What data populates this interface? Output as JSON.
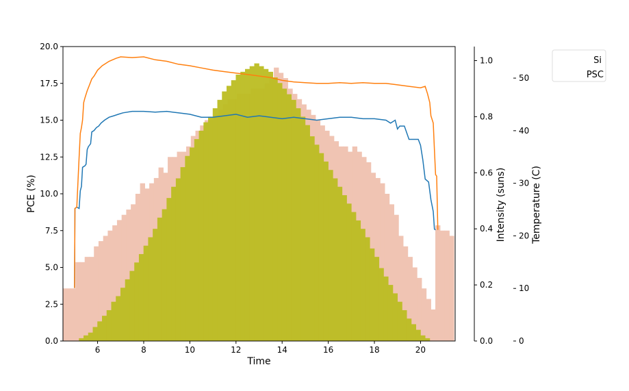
{
  "chart_data": {
    "type": "line",
    "title": "",
    "xlabel": "Time",
    "xlim": [
      4.5,
      21.5
    ],
    "x_ticks": [
      6,
      8,
      10,
      12,
      14,
      16,
      18,
      20
    ],
    "axes": {
      "pce": {
        "label": "PCE (%)",
        "lim": [
          0,
          20
        ],
        "ticks": [
          "0.0",
          "2.5",
          "5.0",
          "7.5",
          "10.0",
          "12.5",
          "15.0",
          "17.5",
          "20.0"
        ]
      },
      "intensity": {
        "label": "Intensity (suns)",
        "lim": [
          0,
          1.05
        ],
        "ticks": [
          "0.0",
          "0.2",
          "0.4",
          "0.6",
          "0.8",
          "1.0"
        ]
      },
      "temperature": {
        "label": "Temperature (C)",
        "lim": [
          0,
          56
        ],
        "ticks": [
          "0",
          "10",
          "20",
          "30",
          "40",
          "50"
        ]
      }
    },
    "legend": {
      "placement": "outside-top-right",
      "entries": [
        "Si",
        "PSC"
      ]
    },
    "grid": false,
    "series": [
      {
        "name": "Si",
        "axis": "pce",
        "color": "#1f77b4",
        "points": [
          [
            5.0,
            3.6
          ],
          [
            5.02,
            9.0
          ],
          [
            5.1,
            9.1
          ],
          [
            5.2,
            9.0
          ],
          [
            5.25,
            10.2
          ],
          [
            5.3,
            10.5
          ],
          [
            5.35,
            11.8
          ],
          [
            5.45,
            11.9
          ],
          [
            5.5,
            12.0
          ],
          [
            5.55,
            13.0
          ],
          [
            5.6,
            13.2
          ],
          [
            5.7,
            13.4
          ],
          [
            5.75,
            14.2
          ],
          [
            5.85,
            14.3
          ],
          [
            5.95,
            14.5
          ],
          [
            6.05,
            14.6
          ],
          [
            6.15,
            14.8
          ],
          [
            6.3,
            15.0
          ],
          [
            6.5,
            15.2
          ],
          [
            6.7,
            15.3
          ],
          [
            6.9,
            15.4
          ],
          [
            7.1,
            15.5
          ],
          [
            7.5,
            15.6
          ],
          [
            8.0,
            15.6
          ],
          [
            8.5,
            15.55
          ],
          [
            9.0,
            15.6
          ],
          [
            9.5,
            15.5
          ],
          [
            10.0,
            15.4
          ],
          [
            10.5,
            15.2
          ],
          [
            11.0,
            15.2
          ],
          [
            11.5,
            15.3
          ],
          [
            12.0,
            15.4
          ],
          [
            12.5,
            15.2
          ],
          [
            13.0,
            15.3
          ],
          [
            13.5,
            15.2
          ],
          [
            14.0,
            15.1
          ],
          [
            14.5,
            15.2
          ],
          [
            15.0,
            15.1
          ],
          [
            15.5,
            15.0
          ],
          [
            16.0,
            15.1
          ],
          [
            16.5,
            15.2
          ],
          [
            17.0,
            15.2
          ],
          [
            17.5,
            15.1
          ],
          [
            18.0,
            15.1
          ],
          [
            18.5,
            15.0
          ],
          [
            18.7,
            14.8
          ],
          [
            18.9,
            15.0
          ],
          [
            19.0,
            14.4
          ],
          [
            19.1,
            14.6
          ],
          [
            19.3,
            14.6
          ],
          [
            19.5,
            13.7
          ],
          [
            19.9,
            13.7
          ],
          [
            20.0,
            13.3
          ],
          [
            20.1,
            12.3
          ],
          [
            20.2,
            11.0
          ],
          [
            20.35,
            10.8
          ],
          [
            20.45,
            9.6
          ],
          [
            20.55,
            8.8
          ],
          [
            20.6,
            7.6
          ],
          [
            20.65,
            7.55
          ]
        ]
      },
      {
        "name": "PSC",
        "axis": "pce",
        "color": "#ff7f0e",
        "points": [
          [
            5.0,
            3.6
          ],
          [
            5.02,
            9.0
          ],
          [
            5.1,
            9.1
          ],
          [
            5.2,
            12.5
          ],
          [
            5.25,
            14.1
          ],
          [
            5.3,
            14.5
          ],
          [
            5.35,
            15.0
          ],
          [
            5.4,
            16.2
          ],
          [
            5.45,
            16.5
          ],
          [
            5.55,
            17.0
          ],
          [
            5.65,
            17.4
          ],
          [
            5.75,
            17.8
          ],
          [
            5.85,
            18.0
          ],
          [
            6.0,
            18.4
          ],
          [
            6.2,
            18.7
          ],
          [
            6.5,
            19.0
          ],
          [
            6.8,
            19.2
          ],
          [
            7.0,
            19.3
          ],
          [
            7.5,
            19.25
          ],
          [
            8.0,
            19.3
          ],
          [
            8.5,
            19.1
          ],
          [
            9.0,
            19.0
          ],
          [
            9.5,
            18.8
          ],
          [
            10.0,
            18.7
          ],
          [
            10.5,
            18.55
          ],
          [
            11.0,
            18.4
          ],
          [
            11.5,
            18.3
          ],
          [
            12.0,
            18.2
          ],
          [
            12.5,
            18.1
          ],
          [
            13.0,
            18.0
          ],
          [
            13.5,
            17.9
          ],
          [
            14.0,
            17.7
          ],
          [
            14.5,
            17.6
          ],
          [
            15.0,
            17.55
          ],
          [
            15.5,
            17.5
          ],
          [
            16.0,
            17.5
          ],
          [
            16.5,
            17.55
          ],
          [
            17.0,
            17.5
          ],
          [
            17.5,
            17.55
          ],
          [
            18.0,
            17.5
          ],
          [
            18.5,
            17.5
          ],
          [
            19.0,
            17.4
          ],
          [
            19.5,
            17.3
          ],
          [
            20.0,
            17.2
          ],
          [
            20.2,
            17.3
          ],
          [
            20.3,
            16.8
          ],
          [
            20.4,
            16.2
          ],
          [
            20.45,
            15.3
          ],
          [
            20.55,
            14.8
          ],
          [
            20.6,
            13.0
          ],
          [
            20.65,
            11.3
          ],
          [
            20.7,
            11.2
          ],
          [
            20.75,
            7.55
          ]
        ]
      },
      {
        "name": "Intensity",
        "axis": "intensity",
        "type": "bar",
        "color": "#bcbd22",
        "x": [
          5.3,
          5.5,
          5.7,
          5.9,
          6.1,
          6.3,
          6.5,
          6.7,
          6.9,
          7.1,
          7.3,
          7.5,
          7.7,
          7.9,
          8.1,
          8.3,
          8.5,
          8.7,
          8.9,
          9.1,
          9.3,
          9.5,
          9.7,
          9.9,
          10.1,
          10.3,
          10.5,
          10.7,
          10.9,
          11.1,
          11.3,
          11.5,
          11.7,
          11.9,
          12.1,
          12.3,
          12.5,
          12.7,
          12.9,
          13.1,
          13.3,
          13.5,
          13.7,
          13.9,
          14.1,
          14.3,
          14.5,
          14.7,
          14.9,
          15.1,
          15.3,
          15.5,
          15.7,
          15.9,
          16.1,
          16.3,
          16.5,
          16.7,
          16.9,
          17.1,
          17.3,
          17.5,
          17.7,
          17.9,
          18.1,
          18.3,
          18.5,
          18.7,
          18.9,
          19.1,
          19.3,
          19.5,
          19.7,
          19.9,
          20.1,
          20.3,
          20.5
        ],
        "values": [
          0.01,
          0.02,
          0.03,
          0.05,
          0.07,
          0.09,
          0.11,
          0.14,
          0.16,
          0.19,
          0.22,
          0.25,
          0.28,
          0.31,
          0.34,
          0.37,
          0.4,
          0.44,
          0.47,
          0.51,
          0.55,
          0.58,
          0.62,
          0.66,
          0.69,
          0.72,
          0.75,
          0.78,
          0.8,
          0.83,
          0.86,
          0.89,
          0.91,
          0.93,
          0.95,
          0.96,
          0.97,
          0.98,
          0.99,
          0.98,
          0.97,
          0.96,
          0.94,
          0.92,
          0.9,
          0.88,
          0.86,
          0.83,
          0.8,
          0.77,
          0.73,
          0.7,
          0.67,
          0.64,
          0.61,
          0.58,
          0.55,
          0.52,
          0.49,
          0.46,
          0.43,
          0.4,
          0.37,
          0.33,
          0.3,
          0.26,
          0.23,
          0.2,
          0.17,
          0.14,
          0.11,
          0.08,
          0.06,
          0.04,
          0.02,
          0.01,
          0.0
        ]
      },
      {
        "name": "Temperature",
        "axis": "temperature",
        "type": "bar",
        "color": "#f0c4b3",
        "x": [
          4.55,
          4.75,
          4.95,
          5.15,
          5.35,
          5.55,
          5.75,
          5.95,
          6.15,
          6.35,
          6.55,
          6.75,
          6.95,
          7.15,
          7.35,
          7.55,
          7.75,
          7.95,
          8.15,
          8.35,
          8.55,
          8.75,
          8.95,
          9.15,
          9.35,
          9.55,
          9.75,
          9.95,
          10.15,
          10.35,
          10.55,
          10.75,
          10.95,
          11.15,
          11.35,
          11.55,
          11.75,
          11.95,
          12.15,
          12.35,
          12.55,
          12.75,
          12.95,
          13.15,
          13.35,
          13.55,
          13.75,
          13.95,
          14.15,
          14.35,
          14.55,
          14.75,
          14.95,
          15.15,
          15.35,
          15.55,
          15.75,
          15.95,
          16.15,
          16.35,
          16.55,
          16.75,
          16.95,
          17.15,
          17.35,
          17.55,
          17.75,
          17.95,
          18.15,
          18.35,
          18.55,
          18.75,
          18.95,
          19.15,
          19.35,
          19.55,
          19.75,
          19.95,
          20.15,
          20.35,
          20.55,
          20.75,
          20.95,
          21.15,
          21.35
        ],
        "values": [
          10,
          10,
          10,
          15,
          15,
          16,
          16,
          18,
          19,
          20,
          21,
          22,
          23,
          24,
          25,
          26,
          28,
          30,
          29,
          30,
          31,
          33,
          32,
          35,
          35,
          36,
          36,
          37,
          39,
          40,
          41,
          42,
          42,
          43,
          44,
          45,
          46,
          46,
          47,
          47,
          47,
          48,
          48,
          48,
          49,
          50,
          52,
          51,
          50,
          48,
          47,
          46,
          45,
          44,
          43,
          42,
          41,
          40,
          39,
          38,
          37,
          37,
          36,
          37,
          36,
          35,
          34,
          32,
          31,
          30,
          28,
          26,
          24,
          20,
          18,
          16,
          14,
          12,
          10,
          8,
          6,
          22,
          21,
          21,
          20
        ]
      }
    ]
  }
}
